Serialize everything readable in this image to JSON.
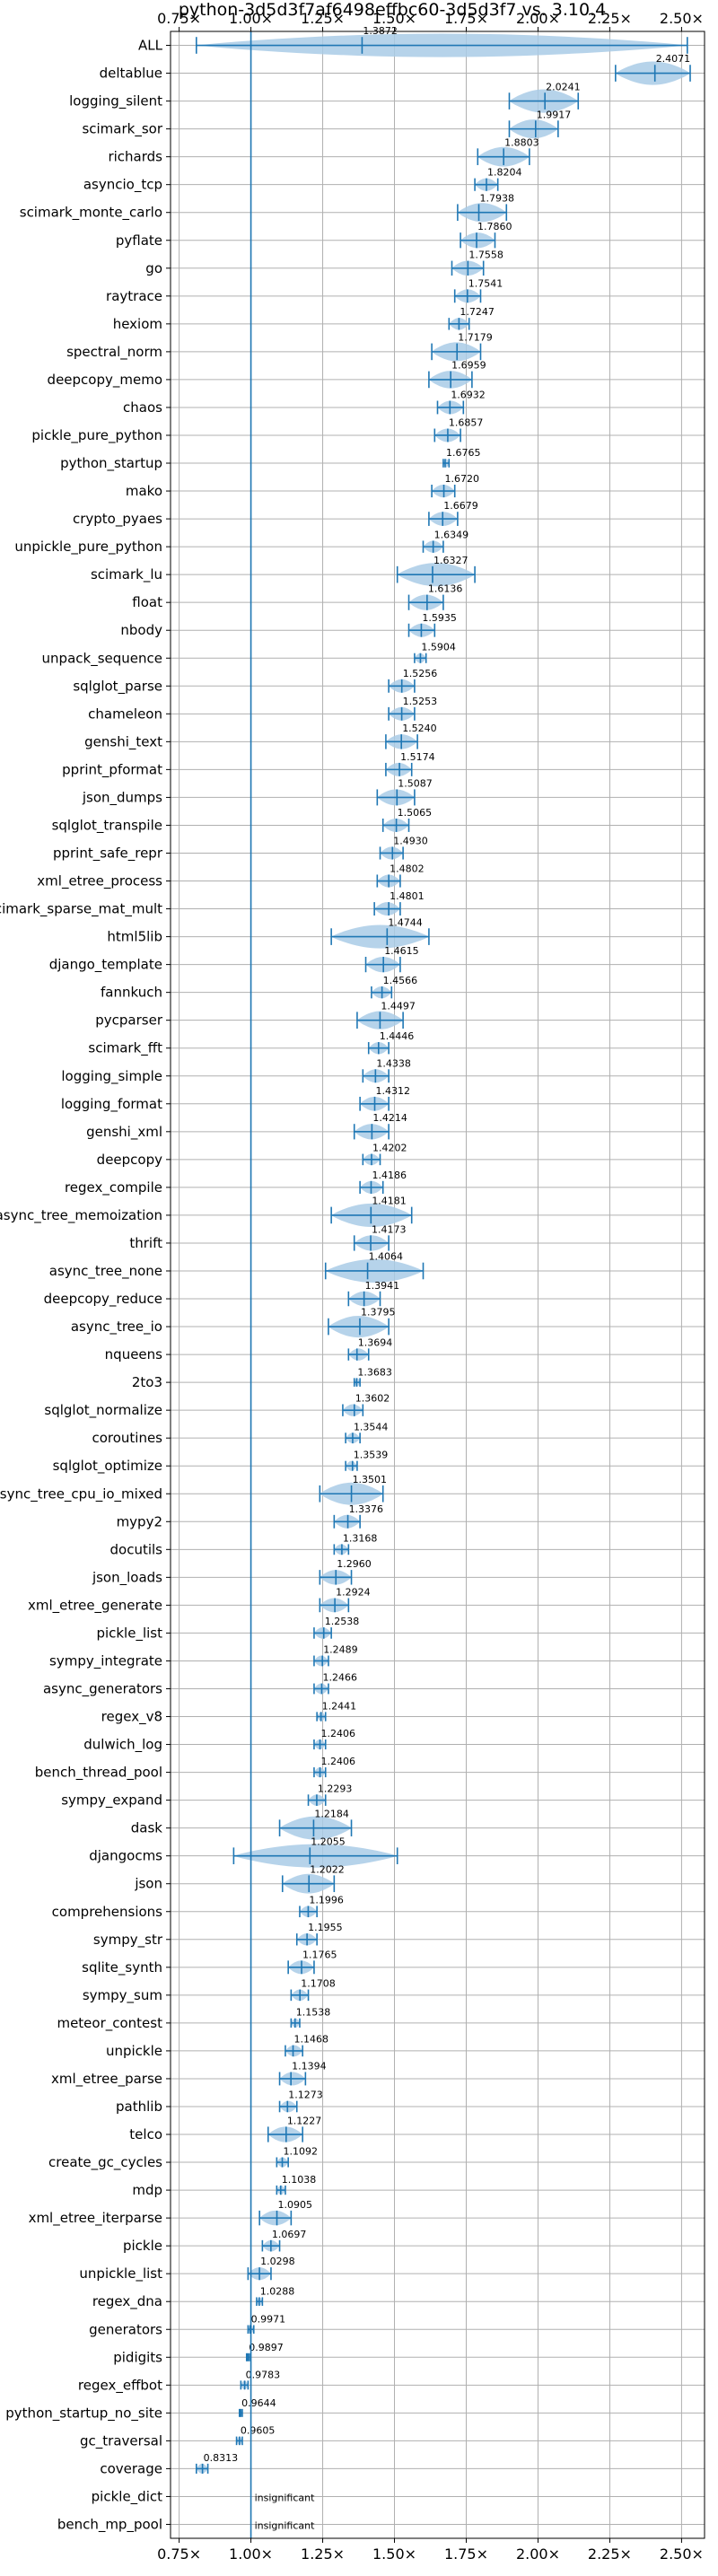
{
  "chart_data": {
    "type": "violin",
    "title": "python-3d5d3f7af6498effbc60-3d5d3f7 vs. 3.10.4",
    "xlim": [
      0.72,
      2.58
    ],
    "xticks": [
      0.75,
      1.0,
      1.25,
      1.5,
      1.75,
      2.0,
      2.25,
      2.5
    ],
    "xtick_labels": [
      "0.75×",
      "1.00×",
      "1.25×",
      "1.50×",
      "1.75×",
      "2.00×",
      "2.25×",
      "2.50×"
    ],
    "reference_line": 1.0,
    "grid": true,
    "colors": {
      "line": "#1f77b4",
      "violin": "#a9cbe6",
      "grid": "#b0b0b0"
    },
    "insignificant_text": "insignificant",
    "benchmarks": [
      {
        "name": "ALL",
        "value": 1.3872,
        "label": "1.3872",
        "min": 0.81,
        "max": 2.52
      },
      {
        "name": "deltablue",
        "value": 2.4071,
        "label": "2.4071",
        "min": 2.27,
        "max": 2.53
      },
      {
        "name": "logging_silent",
        "value": 2.0241,
        "label": "2.0241",
        "min": 1.9,
        "max": 2.14
      },
      {
        "name": "scimark_sor",
        "value": 1.9917,
        "label": "1.9917",
        "min": 1.9,
        "max": 2.07
      },
      {
        "name": "richards",
        "value": 1.8803,
        "label": "1.8803",
        "min": 1.79,
        "max": 1.97
      },
      {
        "name": "asyncio_tcp",
        "value": 1.8204,
        "label": "1.8204",
        "min": 1.78,
        "max": 1.86
      },
      {
        "name": "scimark_monte_carlo",
        "value": 1.7938,
        "label": "1.7938",
        "min": 1.72,
        "max": 1.89
      },
      {
        "name": "pyflate",
        "value": 1.786,
        "label": "1.7860",
        "min": 1.73,
        "max": 1.85
      },
      {
        "name": "go",
        "value": 1.7558,
        "label": "1.7558",
        "min": 1.7,
        "max": 1.81
      },
      {
        "name": "raytrace",
        "value": 1.7541,
        "label": "1.7541",
        "min": 1.71,
        "max": 1.8
      },
      {
        "name": "hexiom",
        "value": 1.7247,
        "label": "1.7247",
        "min": 1.69,
        "max": 1.76
      },
      {
        "name": "spectral_norm",
        "value": 1.7179,
        "label": "1.7179",
        "min": 1.63,
        "max": 1.8
      },
      {
        "name": "deepcopy_memo",
        "value": 1.6959,
        "label": "1.6959",
        "min": 1.62,
        "max": 1.77
      },
      {
        "name": "chaos",
        "value": 1.6932,
        "label": "1.6932",
        "min": 1.65,
        "max": 1.74
      },
      {
        "name": "pickle_pure_python",
        "value": 1.6857,
        "label": "1.6857",
        "min": 1.64,
        "max": 1.73
      },
      {
        "name": "python_startup",
        "value": 1.6765,
        "label": "1.6765",
        "min": 1.67,
        "max": 1.69
      },
      {
        "name": "mako",
        "value": 1.672,
        "label": "1.6720",
        "min": 1.63,
        "max": 1.71
      },
      {
        "name": "crypto_pyaes",
        "value": 1.6679,
        "label": "1.6679",
        "min": 1.62,
        "max": 1.72
      },
      {
        "name": "unpickle_pure_python",
        "value": 1.6349,
        "label": "1.6349",
        "min": 1.6,
        "max": 1.67
      },
      {
        "name": "scimark_lu",
        "value": 1.6327,
        "label": "1.6327",
        "min": 1.51,
        "max": 1.78
      },
      {
        "name": "float",
        "value": 1.6136,
        "label": "1.6136",
        "min": 1.55,
        "max": 1.67
      },
      {
        "name": "nbody",
        "value": 1.5935,
        "label": "1.5935",
        "min": 1.55,
        "max": 1.64
      },
      {
        "name": "unpack_sequence",
        "value": 1.5904,
        "label": "1.5904",
        "min": 1.57,
        "max": 1.61
      },
      {
        "name": "sqlglot_parse",
        "value": 1.5256,
        "label": "1.5256",
        "min": 1.48,
        "max": 1.57
      },
      {
        "name": "chameleon",
        "value": 1.5253,
        "label": "1.5253",
        "min": 1.48,
        "max": 1.57
      },
      {
        "name": "genshi_text",
        "value": 1.524,
        "label": "1.5240",
        "min": 1.47,
        "max": 1.58
      },
      {
        "name": "pprint_pformat",
        "value": 1.5174,
        "label": "1.5174",
        "min": 1.47,
        "max": 1.56
      },
      {
        "name": "json_dumps",
        "value": 1.5087,
        "label": "1.5087",
        "min": 1.44,
        "max": 1.57
      },
      {
        "name": "sqlglot_transpile",
        "value": 1.5065,
        "label": "1.5065",
        "min": 1.46,
        "max": 1.55
      },
      {
        "name": "pprint_safe_repr",
        "value": 1.493,
        "label": "1.4930",
        "min": 1.45,
        "max": 1.53
      },
      {
        "name": "xml_etree_process",
        "value": 1.4802,
        "label": "1.4802",
        "min": 1.44,
        "max": 1.52
      },
      {
        "name": "scimark_sparse_mat_mult",
        "value": 1.4801,
        "label": "1.4801",
        "min": 1.43,
        "max": 1.52
      },
      {
        "name": "html5lib",
        "value": 1.4744,
        "label": "1.4744",
        "min": 1.28,
        "max": 1.62
      },
      {
        "name": "django_template",
        "value": 1.4615,
        "label": "1.4615",
        "min": 1.4,
        "max": 1.52
      },
      {
        "name": "fannkuch",
        "value": 1.4566,
        "label": "1.4566",
        "min": 1.42,
        "max": 1.49
      },
      {
        "name": "pycparser",
        "value": 1.4497,
        "label": "1.4497",
        "min": 1.37,
        "max": 1.53
      },
      {
        "name": "scimark_fft",
        "value": 1.4446,
        "label": "1.4446",
        "min": 1.41,
        "max": 1.48
      },
      {
        "name": "logging_simple",
        "value": 1.4338,
        "label": "1.4338",
        "min": 1.39,
        "max": 1.48
      },
      {
        "name": "logging_format",
        "value": 1.4312,
        "label": "1.4312",
        "min": 1.38,
        "max": 1.48
      },
      {
        "name": "genshi_xml",
        "value": 1.4214,
        "label": "1.4214",
        "min": 1.36,
        "max": 1.48
      },
      {
        "name": "deepcopy",
        "value": 1.4202,
        "label": "1.4202",
        "min": 1.39,
        "max": 1.45
      },
      {
        "name": "regex_compile",
        "value": 1.4186,
        "label": "1.4186",
        "min": 1.38,
        "max": 1.46
      },
      {
        "name": "async_tree_memoization",
        "value": 1.4181,
        "label": "1.4181",
        "min": 1.28,
        "max": 1.56
      },
      {
        "name": "thrift",
        "value": 1.4173,
        "label": "1.4173",
        "min": 1.36,
        "max": 1.48
      },
      {
        "name": "async_tree_none",
        "value": 1.4064,
        "label": "1.4064",
        "min": 1.26,
        "max": 1.6
      },
      {
        "name": "deepcopy_reduce",
        "value": 1.3941,
        "label": "1.3941",
        "min": 1.34,
        "max": 1.45
      },
      {
        "name": "async_tree_io",
        "value": 1.3795,
        "label": "1.3795",
        "min": 1.27,
        "max": 1.48
      },
      {
        "name": "nqueens",
        "value": 1.3694,
        "label": "1.3694",
        "min": 1.34,
        "max": 1.41
      },
      {
        "name": "2to3",
        "value": 1.3683,
        "label": "1.3683",
        "min": 1.36,
        "max": 1.38
      },
      {
        "name": "sqlglot_normalize",
        "value": 1.3602,
        "label": "1.3602",
        "min": 1.32,
        "max": 1.39
      },
      {
        "name": "coroutines",
        "value": 1.3544,
        "label": "1.3544",
        "min": 1.33,
        "max": 1.38
      },
      {
        "name": "sqlglot_optimize",
        "value": 1.3539,
        "label": "1.3539",
        "min": 1.33,
        "max": 1.37
      },
      {
        "name": "async_tree_cpu_io_mixed",
        "value": 1.3501,
        "label": "1.3501",
        "min": 1.24,
        "max": 1.46
      },
      {
        "name": "mypy2",
        "value": 1.3376,
        "label": "1.3376",
        "min": 1.29,
        "max": 1.38
      },
      {
        "name": "docutils",
        "value": 1.3168,
        "label": "1.3168",
        "min": 1.29,
        "max": 1.34
      },
      {
        "name": "json_loads",
        "value": 1.296,
        "label": "1.2960",
        "min": 1.24,
        "max": 1.35
      },
      {
        "name": "xml_etree_generate",
        "value": 1.2924,
        "label": "1.2924",
        "min": 1.24,
        "max": 1.34
      },
      {
        "name": "pickle_list",
        "value": 1.2538,
        "label": "1.2538",
        "min": 1.22,
        "max": 1.28
      },
      {
        "name": "sympy_integrate",
        "value": 1.2489,
        "label": "1.2489",
        "min": 1.22,
        "max": 1.27
      },
      {
        "name": "async_generators",
        "value": 1.2466,
        "label": "1.2466",
        "min": 1.22,
        "max": 1.27
      },
      {
        "name": "regex_v8",
        "value": 1.2441,
        "label": "1.2441",
        "min": 1.23,
        "max": 1.26
      },
      {
        "name": "dulwich_log",
        "value": 1.2406,
        "label": "1.2406",
        "min": 1.22,
        "max": 1.26
      },
      {
        "name": "bench_thread_pool",
        "value": 1.2406,
        "label": "1.2406",
        "min": 1.22,
        "max": 1.26
      },
      {
        "name": "sympy_expand",
        "value": 1.2293,
        "label": "1.2293",
        "min": 1.2,
        "max": 1.26
      },
      {
        "name": "dask",
        "value": 1.2184,
        "label": "1.2184",
        "min": 1.1,
        "max": 1.35
      },
      {
        "name": "djangocms",
        "value": 1.2055,
        "label": "1.2055",
        "min": 0.94,
        "max": 1.51
      },
      {
        "name": "json",
        "value": 1.2022,
        "label": "1.2022",
        "min": 1.11,
        "max": 1.29
      },
      {
        "name": "comprehensions",
        "value": 1.1996,
        "label": "1.1996",
        "min": 1.17,
        "max": 1.23
      },
      {
        "name": "sympy_str",
        "value": 1.1955,
        "label": "1.1955",
        "min": 1.16,
        "max": 1.23
      },
      {
        "name": "sqlite_synth",
        "value": 1.1765,
        "label": "1.1765",
        "min": 1.13,
        "max": 1.22
      },
      {
        "name": "sympy_sum",
        "value": 1.1708,
        "label": "1.1708",
        "min": 1.14,
        "max": 1.2
      },
      {
        "name": "meteor_contest",
        "value": 1.1538,
        "label": "1.1538",
        "min": 1.14,
        "max": 1.17
      },
      {
        "name": "unpickle",
        "value": 1.1468,
        "label": "1.1468",
        "min": 1.12,
        "max": 1.18
      },
      {
        "name": "xml_etree_parse",
        "value": 1.1394,
        "label": "1.1394",
        "min": 1.1,
        "max": 1.19
      },
      {
        "name": "pathlib",
        "value": 1.1273,
        "label": "1.1273",
        "min": 1.1,
        "max": 1.16
      },
      {
        "name": "telco",
        "value": 1.1227,
        "label": "1.1227",
        "min": 1.06,
        "max": 1.18
      },
      {
        "name": "create_gc_cycles",
        "value": 1.1092,
        "label": "1.1092",
        "min": 1.09,
        "max": 1.13
      },
      {
        "name": "mdp",
        "value": 1.1038,
        "label": "1.1038",
        "min": 1.09,
        "max": 1.12
      },
      {
        "name": "xml_etree_iterparse",
        "value": 1.0905,
        "label": "1.0905",
        "min": 1.03,
        "max": 1.14
      },
      {
        "name": "pickle",
        "value": 1.0697,
        "label": "1.0697",
        "min": 1.04,
        "max": 1.1
      },
      {
        "name": "unpickle_list",
        "value": 1.0298,
        "label": "1.0298",
        "min": 0.99,
        "max": 1.07
      },
      {
        "name": "regex_dna",
        "value": 1.0288,
        "label": "1.0288",
        "min": 1.02,
        "max": 1.04
      },
      {
        "name": "generators",
        "value": 0.9971,
        "label": "0.9971",
        "min": 0.99,
        "max": 1.01
      },
      {
        "name": "pidigits",
        "value": 0.9897,
        "label": "0.9897",
        "min": 0.985,
        "max": 0.995
      },
      {
        "name": "regex_effbot",
        "value": 0.9783,
        "label": "0.9783",
        "min": 0.965,
        "max": 0.99
      },
      {
        "name": "python_startup_no_site",
        "value": 0.9644,
        "label": "0.9644",
        "min": 0.96,
        "max": 0.97
      },
      {
        "name": "gc_traversal",
        "value": 0.9605,
        "label": "0.9605",
        "min": 0.95,
        "max": 0.97
      },
      {
        "name": "coverage",
        "value": 0.8313,
        "label": "0.8313",
        "min": 0.81,
        "max": 0.85
      },
      {
        "name": "pickle_dict",
        "value": null,
        "label": "",
        "insignificant": true
      },
      {
        "name": "bench_mp_pool",
        "value": null,
        "label": "",
        "insignificant": true
      }
    ]
  }
}
